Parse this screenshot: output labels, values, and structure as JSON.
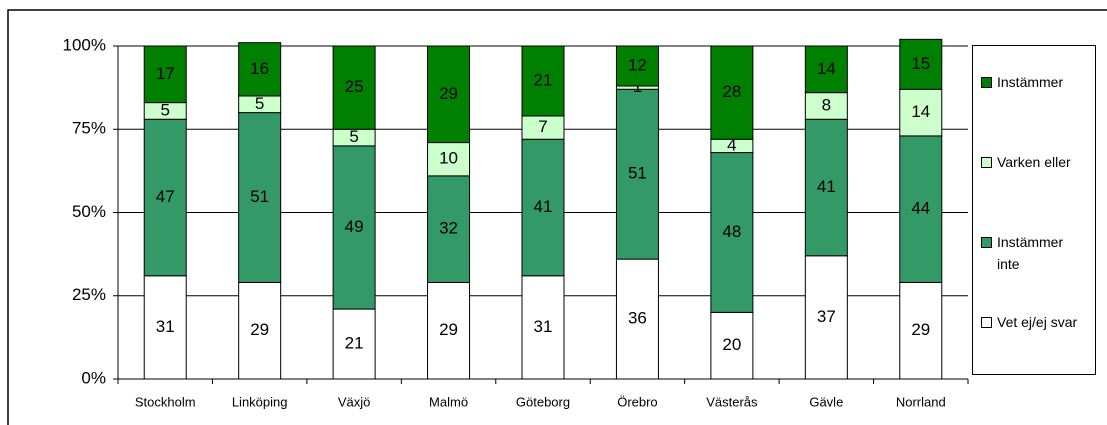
{
  "chart_data": {
    "type": "bar",
    "stacked": true,
    "categories": [
      "Stockholm",
      "Linköping",
      "Växjö",
      "Malmö",
      "Göteborg",
      "Örebro",
      "Västerås",
      "Gävle",
      "Norrland"
    ],
    "series": [
      {
        "name": "Vet ej/ej svar",
        "color": "#ffffff",
        "values": [
          31,
          29,
          21,
          29,
          31,
          36,
          20,
          37,
          29
        ]
      },
      {
        "name": "Instämmer inte",
        "color": "#339966",
        "values": [
          47,
          51,
          49,
          32,
          41,
          51,
          48,
          41,
          44
        ]
      },
      {
        "name": "Varken eller",
        "color": "#ccffcc",
        "values": [
          5,
          5,
          5,
          10,
          7,
          1,
          4,
          8,
          14
        ]
      },
      {
        "name": "Instämmer",
        "color": "#008000",
        "values": [
          17,
          16,
          25,
          29,
          21,
          12,
          28,
          14,
          15
        ]
      }
    ],
    "ylim": [
      0,
      100
    ],
    "yticks": [
      {
        "value": 0,
        "label": "0%"
      },
      {
        "value": 25,
        "label": "25%"
      },
      {
        "value": 50,
        "label": "50%"
      },
      {
        "value": 75,
        "label": "75%"
      },
      {
        "value": 100,
        "label": "100%"
      }
    ],
    "grid": true,
    "legend": "right"
  }
}
